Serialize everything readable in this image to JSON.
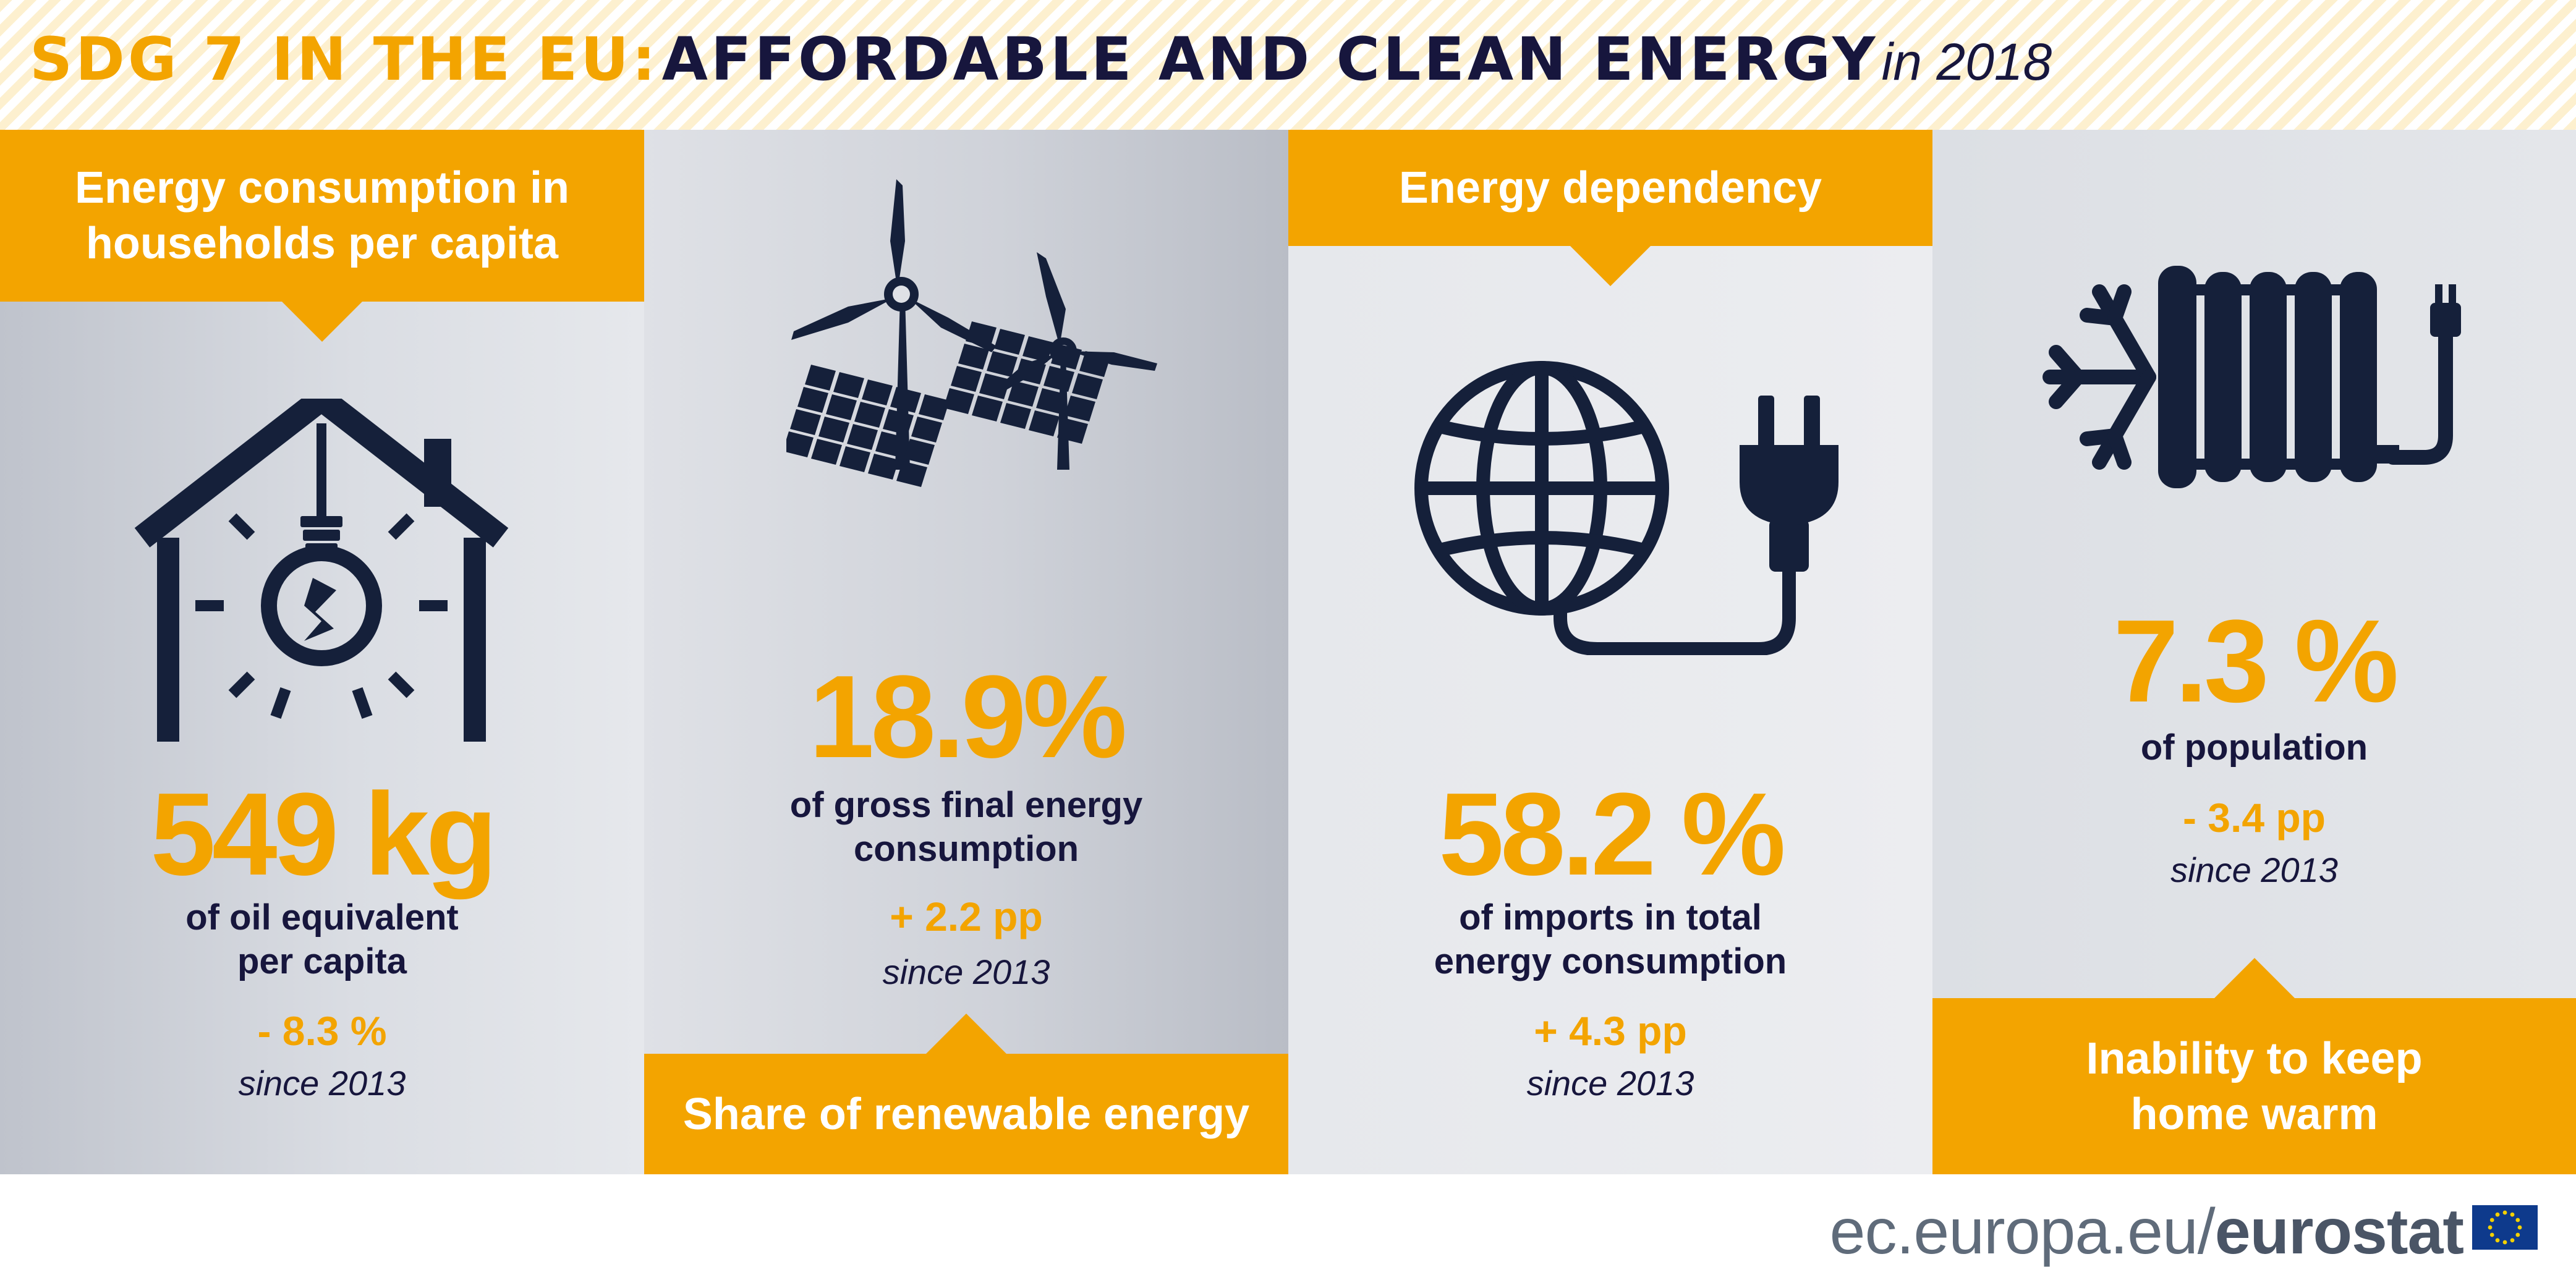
{
  "header": {
    "title_orange": "SDG 7 IN THE EU:",
    "title_navy": "AFFORDABLE AND CLEAN ENERGY",
    "year": "in 2018"
  },
  "colors": {
    "accent": "#f3a400",
    "navy": "#17163d",
    "icon": "#15203a"
  },
  "panels": [
    {
      "banner": "Energy consumption in households per capita",
      "icon": "house-lightbulb-icon",
      "value": "549 kg",
      "desc_line1": "of oil equivalent",
      "desc_line2": "per capita",
      "change": "- 8.3 %",
      "since": "since 2013"
    },
    {
      "banner": "Share of renewable energy",
      "icon": "wind-turbine-solar-panel-icon",
      "value": "18.9%",
      "desc_line1": "of gross final energy",
      "desc_line2": "consumption",
      "change": "+ 2.2 pp",
      "since": "since 2013"
    },
    {
      "banner": "Energy dependency",
      "icon": "globe-plug-icon",
      "value": "58.2 %",
      "desc_line1": "of imports in total",
      "desc_line2": "energy consumption",
      "change": "+ 4.3 pp",
      "since": "since 2013"
    },
    {
      "banner": "Inability to keep home warm",
      "icon": "snowflake-radiator-icon",
      "value": "7.3 %",
      "desc_line1": "of population",
      "change": "- 3.4 pp",
      "since": "since 2013"
    }
  ],
  "footer": {
    "url_prefix": "ec.europa.eu/",
    "brand": "eurostat",
    "flag_icon": "eu-flag-icon"
  }
}
